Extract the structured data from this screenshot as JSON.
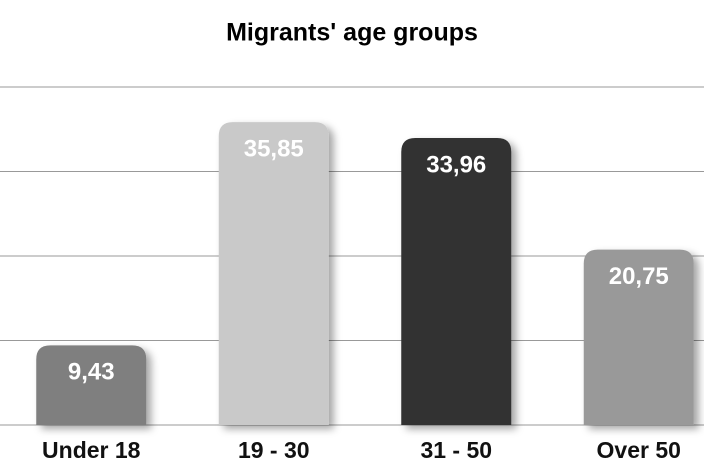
{
  "chart_data": {
    "type": "bar",
    "title": "Migrants' age groups",
    "categories": [
      "Under 18",
      "19 - 30",
      "31 - 50",
      "Over 50"
    ],
    "values": [
      9.43,
      35.85,
      33.96,
      20.75
    ],
    "value_labels": [
      "9,43",
      "35,85",
      "33,96",
      "20,75"
    ],
    "colors": [
      "#7f7f7f",
      "#c9c9c9",
      "#333333",
      "#999999"
    ],
    "ylim": [
      0,
      40
    ],
    "yticks": [
      0,
      10,
      20,
      30,
      40
    ],
    "grid": true
  }
}
